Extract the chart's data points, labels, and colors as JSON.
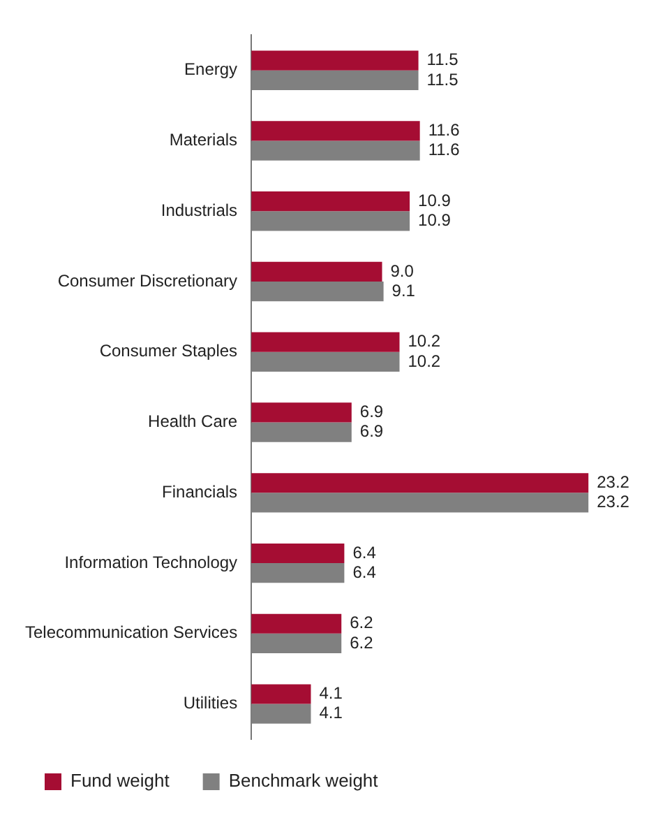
{
  "chart_data": {
    "type": "bar",
    "orientation": "horizontal",
    "categories": [
      "Energy",
      "Materials",
      "Industrials",
      "Consumer Discretionary",
      "Consumer Staples",
      "Health Care",
      "Financials",
      "Information Technology",
      "Telecommunication Services",
      "Utilities"
    ],
    "series": [
      {
        "name": "Fund weight",
        "color": "#a50d33",
        "values": [
          11.5,
          11.6,
          10.9,
          9.0,
          10.2,
          6.9,
          23.2,
          6.4,
          6.2,
          4.1
        ],
        "value_labels": [
          "11.5",
          "11.6",
          "10.9",
          "9.0",
          "10.2",
          "6.9",
          "23.2",
          "6.4",
          "6.2",
          "4.1"
        ]
      },
      {
        "name": "Benchmark weight",
        "color": "#808080",
        "values": [
          11.5,
          11.6,
          10.9,
          9.1,
          10.2,
          6.9,
          23.2,
          6.4,
          6.2,
          4.1
        ],
        "value_labels": [
          "11.5",
          "11.6",
          "10.9",
          "9.1",
          "10.2",
          "6.9",
          "23.2",
          "6.4",
          "6.2",
          "4.1"
        ]
      }
    ],
    "legend": "bottom",
    "grid": false
  }
}
